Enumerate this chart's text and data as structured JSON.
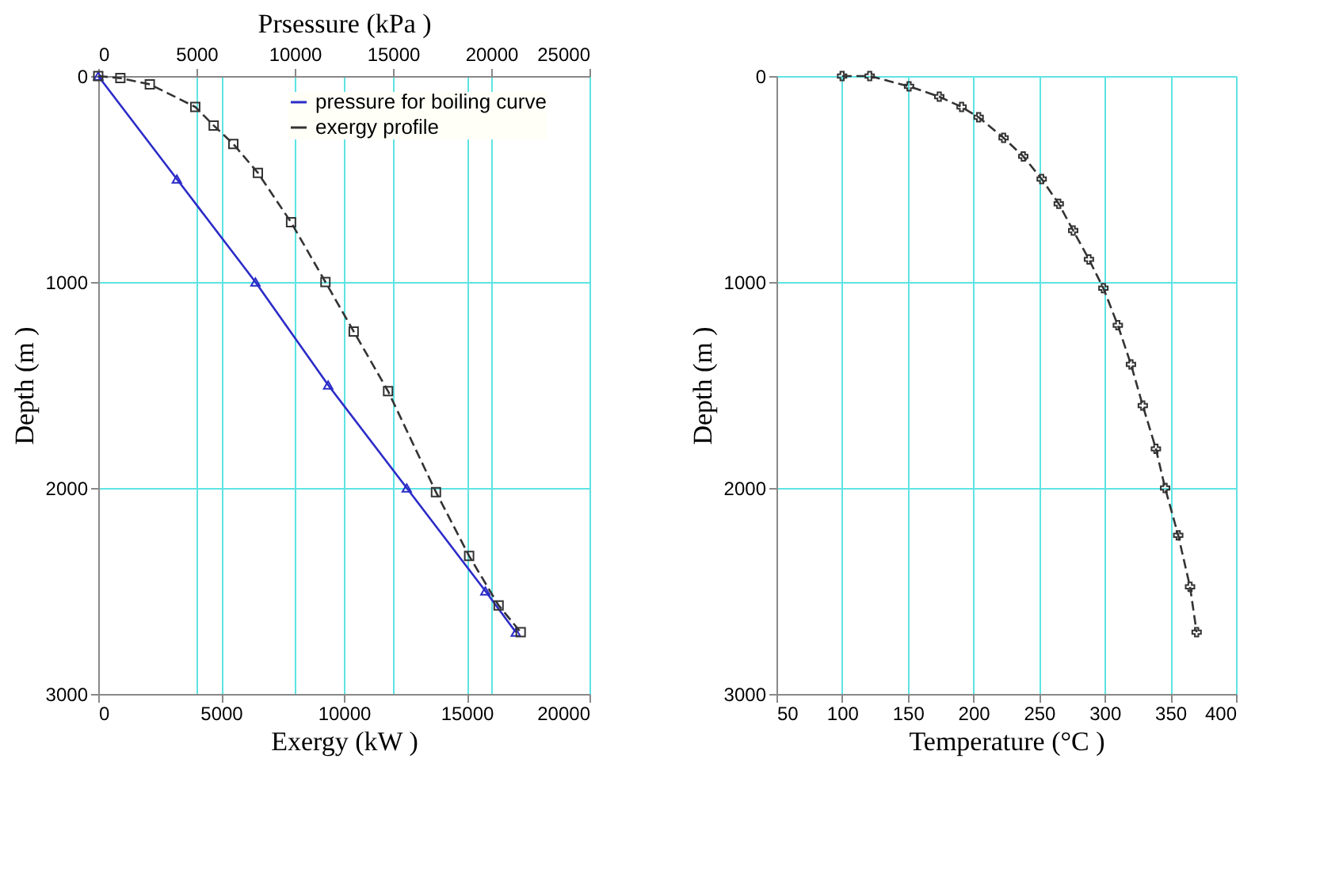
{
  "chart_data": [
    {
      "type": "line",
      "xlabel": "Exergy (kW )",
      "x2label": "Prsessure (kPa )",
      "ylabel": "Depth (m )",
      "xlim": [
        0,
        20000
      ],
      "xticks": [
        0,
        5000,
        10000,
        15000,
        20000
      ],
      "x2lim": [
        0,
        25000
      ],
      "x2ticks": [
        0,
        5000,
        10000,
        15000,
        20000,
        25000
      ],
      "ylim": [
        3000,
        0
      ],
      "yticks": [
        0,
        1000,
        2000,
        3000
      ],
      "grid": true,
      "legend": "top right",
      "series": [
        {
          "name": "pressure for boiling curve",
          "color": "#2b2bc8",
          "axis": "x2",
          "marker": "triangle",
          "line_style": "solid",
          "x": [
            0,
            4000,
            8000,
            11700,
            15700,
            19700,
            21250
          ],
          "values": [
            0,
            500,
            1000,
            1500,
            2000,
            2500,
            2700
          ]
        },
        {
          "name": "exergy profile",
          "color": "#333333",
          "marker": "square",
          "line_style": "dashed",
          "x": [
            0,
            900,
            2100,
            3950,
            4700,
            5500,
            6500,
            7850,
            9250,
            10400,
            11800,
            13750,
            15100,
            16300,
            17200
          ],
          "values": [
            0,
            10,
            40,
            150,
            240,
            330,
            470,
            710,
            1000,
            1240,
            1530,
            2020,
            2330,
            2570,
            2700
          ]
        }
      ]
    },
    {
      "type": "line",
      "xlabel": "Temperature (°C )",
      "ylabel": "Depth (m )",
      "xlim": [
        50,
        400
      ],
      "xticks": [
        50,
        100,
        150,
        200,
        250,
        300,
        350,
        400
      ],
      "ylim": [
        3000,
        0
      ],
      "yticks": [
        0,
        1000,
        2000,
        3000
      ],
      "grid": true,
      "series": [
        {
          "color": "#333333",
          "marker": "cross",
          "line_style": "dashed",
          "x": [
            100,
            121,
            151,
            174,
            191,
            204,
            223,
            238,
            252,
            265,
            276,
            288,
            299,
            310,
            320,
            329,
            339,
            346,
            356,
            365,
            370
          ],
          "values": [
            0,
            0,
            50,
            100,
            150,
            200,
            300,
            390,
            500,
            620,
            750,
            890,
            1030,
            1210,
            1400,
            1600,
            1810,
            2000,
            2230,
            2480,
            2700
          ]
        }
      ]
    }
  ]
}
